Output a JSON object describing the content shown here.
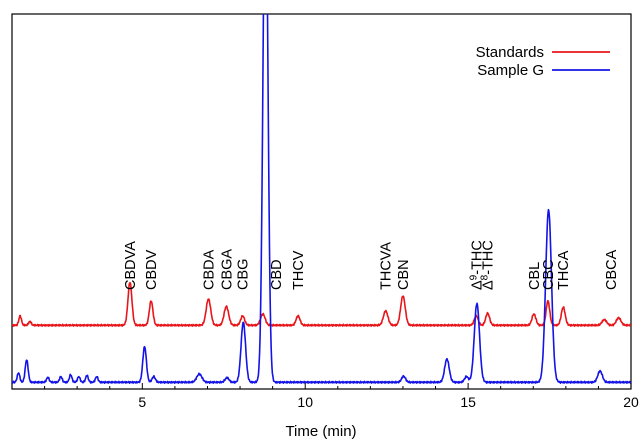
{
  "chart_data": {
    "type": "line",
    "title": "",
    "xlabel": "Time (min)",
    "ylabel": "",
    "xlim": [
      1,
      20
    ],
    "ylim": [
      0,
      100
    ],
    "xticks": [
      5,
      10,
      15,
      20
    ],
    "grid": false,
    "legend_position": "top-right",
    "colors": {
      "standards": "#e8161b",
      "sample": "#1414e6"
    },
    "series": [
      {
        "name": "Standards",
        "color": "#e8161b",
        "baseline": 17.0,
        "noise": [],
        "peaks": [
          {
            "x": 1.25,
            "h": 2.5,
            "w": 0.04
          },
          {
            "x": 1.55,
            "h": 1.0,
            "w": 0.04
          },
          {
            "x": 4.62,
            "h": 11.5,
            "w": 0.06
          },
          {
            "x": 5.27,
            "h": 6.5,
            "w": 0.055
          },
          {
            "x": 7.03,
            "h": 7.0,
            "w": 0.07
          },
          {
            "x": 7.58,
            "h": 5.0,
            "w": 0.07
          },
          {
            "x": 8.08,
            "h": 2.5,
            "w": 0.06
          },
          {
            "x": 8.7,
            "h": 3.0,
            "w": 0.07
          },
          {
            "x": 9.78,
            "h": 2.5,
            "w": 0.06
          },
          {
            "x": 12.47,
            "h": 3.8,
            "w": 0.07
          },
          {
            "x": 13.0,
            "h": 7.8,
            "w": 0.07
          },
          {
            "x": 15.25,
            "h": 2.5,
            "w": 0.06
          },
          {
            "x": 15.6,
            "h": 3.2,
            "w": 0.06
          },
          {
            "x": 17.02,
            "h": 3.0,
            "w": 0.06
          },
          {
            "x": 17.45,
            "h": 6.5,
            "w": 0.055
          },
          {
            "x": 17.92,
            "h": 4.8,
            "w": 0.06
          },
          {
            "x": 19.18,
            "h": 1.5,
            "w": 0.07
          },
          {
            "x": 19.62,
            "h": 2.0,
            "w": 0.07
          }
        ]
      },
      {
        "name": "Sample G",
        "color": "#1414e6",
        "baseline": 1.8,
        "noise": [],
        "peaks": [
          {
            "x": 1.2,
            "h": 2.5,
            "w": 0.04
          },
          {
            "x": 1.45,
            "h": 6.0,
            "w": 0.045
          },
          {
            "x": 2.1,
            "h": 1.3,
            "w": 0.04
          },
          {
            "x": 2.5,
            "h": 1.5,
            "w": 0.04
          },
          {
            "x": 2.8,
            "h": 2.0,
            "w": 0.04
          },
          {
            "x": 3.05,
            "h": 1.5,
            "w": 0.04
          },
          {
            "x": 3.3,
            "h": 1.8,
            "w": 0.04
          },
          {
            "x": 3.6,
            "h": 1.5,
            "w": 0.04
          },
          {
            "x": 5.07,
            "h": 9.5,
            "w": 0.055
          },
          {
            "x": 5.35,
            "h": 1.5,
            "w": 0.05
          },
          {
            "x": 6.75,
            "h": 2.2,
            "w": 0.08
          },
          {
            "x": 7.6,
            "h": 1.2,
            "w": 0.06
          },
          {
            "x": 8.1,
            "h": 16.0,
            "w": 0.07
          },
          {
            "x": 8.78,
            "h": 140.0,
            "w": 0.075
          },
          {
            "x": 13.02,
            "h": 1.6,
            "w": 0.06
          },
          {
            "x": 14.35,
            "h": 6.2,
            "w": 0.07
          },
          {
            "x": 14.95,
            "h": 1.5,
            "w": 0.06
          },
          {
            "x": 15.27,
            "h": 21.0,
            "w": 0.08
          },
          {
            "x": 17.47,
            "h": 46.0,
            "w": 0.09
          },
          {
            "x": 19.05,
            "h": 3.0,
            "w": 0.07
          }
        ]
      }
    ],
    "peak_labels": [
      {
        "x": 4.62,
        "text": "CBDVA"
      },
      {
        "x": 5.27,
        "text": "CBDV"
      },
      {
        "x": 7.03,
        "text": "CBDA"
      },
      {
        "x": 7.58,
        "text": "CBGA"
      },
      {
        "x": 8.08,
        "text": "CBG"
      },
      {
        "x": 9.1,
        "text": "CBD"
      },
      {
        "x": 9.78,
        "text": "THCV"
      },
      {
        "x": 12.47,
        "text": "THCVA"
      },
      {
        "x": 13.0,
        "text": "CBN"
      },
      {
        "x": 15.25,
        "text": "Δ9-THC"
      },
      {
        "x": 15.6,
        "text": "Δ8-THC"
      },
      {
        "x": 17.02,
        "text": "CBL"
      },
      {
        "x": 17.45,
        "text": "CBC"
      },
      {
        "x": 17.92,
        "text": "THCA"
      },
      {
        "x": 19.38,
        "text": "CBCA"
      }
    ]
  }
}
